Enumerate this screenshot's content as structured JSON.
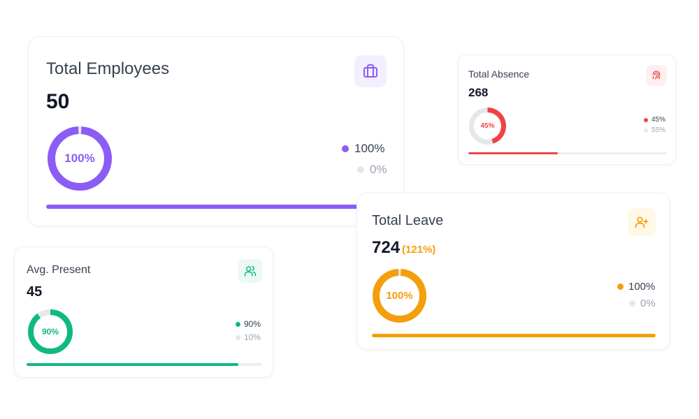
{
  "cards": {
    "employees": {
      "title": "Total Employees",
      "value": "50",
      "percent": 100,
      "percent_label": "100%",
      "legend": [
        "100%",
        "0%"
      ],
      "progress": 1.0,
      "icon": "briefcase-icon",
      "color": "#8b5cf6"
    },
    "absence": {
      "title": "Total Absence",
      "value": "268",
      "percent": 45,
      "percent_label": "45%",
      "legend": [
        "45%",
        "55%"
      ],
      "progress": 0.45,
      "icon": "fingerprint-icon",
      "color": "#ef4444"
    },
    "present": {
      "title": "Avg. Present",
      "value": "45",
      "percent": 90,
      "percent_label": "90%",
      "legend": [
        "90%",
        "10%"
      ],
      "progress": 0.9,
      "icon": "users-icon",
      "color": "#10b981"
    },
    "leave": {
      "title": "Total Leave",
      "value": "724",
      "sub_value": "(121%)",
      "percent": 100,
      "percent_label": "100%",
      "legend": [
        "100%",
        "0%"
      ],
      "progress": 1.0,
      "icon": "user-plus-icon",
      "color": "#f59e0b"
    }
  }
}
